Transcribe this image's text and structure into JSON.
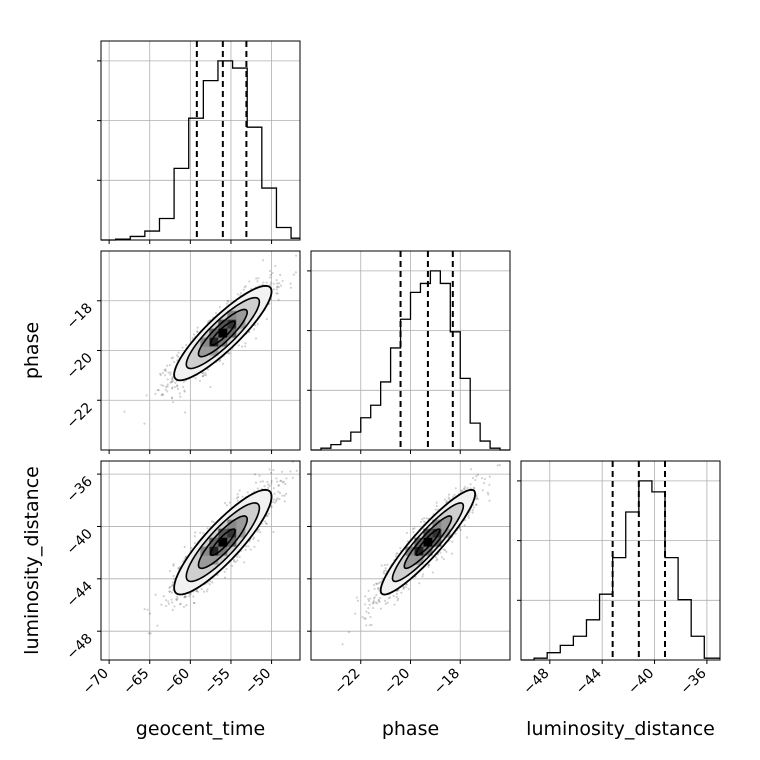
{
  "chart_data": {
    "type": "corner",
    "parameters": [
      "geocent_time",
      "phase",
      "luminosity_distance"
    ],
    "axis_labels": {
      "x": [
        "geocent_time",
        "phase",
        "luminosity_distance"
      ],
      "y": [
        "",
        "phase",
        "luminosity_distance"
      ]
    },
    "ranges": {
      "geocent_time": [
        -71,
        -46.5
      ],
      "phase": [
        -24.0,
        -16.0
      ],
      "luminosity_distance": [
        -50.2,
        -35.0
      ]
    },
    "ticks": {
      "geocent_time": [
        -70,
        -65,
        -60,
        -55,
        -50
      ],
      "phase": [
        -22,
        -20,
        -18
      ],
      "luminosity_distance": [
        -48,
        -44,
        -40,
        -36
      ]
    },
    "tick_labels": {
      "geocent_time": [
        "−70",
        "−65",
        "−60",
        "−55",
        "−50"
      ],
      "phase": [
        "−22",
        "−20",
        "−18"
      ],
      "luminosity_distance": [
        "−48",
        "−44",
        "−40",
        "−36"
      ]
    },
    "quantiles": {
      "geocent_time": [
        -59.2,
        -56.0,
        -53.1
      ],
      "phase": [
        -20.4,
        -19.3,
        -18.3
      ],
      "luminosity_distance": [
        -43.2,
        -41.2,
        -39.2
      ]
    },
    "histograms": {
      "geocent_time": {
        "edges": [
          -71,
          -69.2,
          -67.4,
          -65.6,
          -63.8,
          -62.0,
          -60.2,
          -58.4,
          -56.6,
          -54.8,
          -53.0,
          -51.2,
          -49.4,
          -47.6,
          -46.5
        ],
        "counts": [
          0.0,
          0.005,
          0.02,
          0.05,
          0.12,
          0.4,
          0.68,
          0.89,
          1.0,
          0.96,
          0.63,
          0.29,
          0.07,
          0.01
        ]
      },
      "phase": {
        "edges": [
          -24.0,
          -23.6,
          -23.2,
          -22.8,
          -22.4,
          -22.0,
          -21.6,
          -21.2,
          -20.8,
          -20.4,
          -20.0,
          -19.6,
          -19.2,
          -18.8,
          -18.4,
          -18.0,
          -17.6,
          -17.2,
          -16.8,
          -16.4,
          -16.0
        ],
        "counts": [
          0.0,
          0.01,
          0.03,
          0.05,
          0.1,
          0.18,
          0.25,
          0.38,
          0.57,
          0.73,
          0.88,
          0.93,
          1.0,
          0.93,
          0.66,
          0.4,
          0.15,
          0.05,
          0.01,
          0.0
        ]
      },
      "luminosity_distance": {
        "edges": [
          -50.2,
          -49.2,
          -48.2,
          -47.2,
          -46.2,
          -45.2,
          -44.2,
          -43.2,
          -42.2,
          -41.2,
          -40.2,
          -39.2,
          -38.2,
          -37.2,
          -36.2,
          -35.0
        ],
        "counts": [
          0.0,
          0.01,
          0.04,
          0.08,
          0.13,
          0.22,
          0.36,
          0.56,
          0.81,
          0.98,
          0.92,
          0.56,
          0.33,
          0.13,
          0.01
        ]
      }
    },
    "joint": [
      {
        "x": "geocent_time",
        "y": "phase",
        "mean": [
          -56.0,
          -19.3
        ],
        "sd": [
          3.0,
          0.95
        ],
        "rho": 0.88
      },
      {
        "x": "geocent_time",
        "y": "luminosity_distance",
        "mean": [
          -56.0,
          -41.2
        ],
        "sd": [
          3.0,
          2.0
        ],
        "rho": 0.87
      },
      {
        "x": "phase",
        "y": "luminosity_distance",
        "mean": [
          -19.3,
          -41.2
        ],
        "sd": [
          0.95,
          2.0
        ],
        "rho": 0.92
      }
    ],
    "contour_levels_sigma": [
      0.5,
      1.0,
      1.5,
      2.0
    ],
    "grid": true
  },
  "colors": {
    "line": "#000000",
    "grid": "#b0b0b0",
    "scatter": "#000000",
    "contour_fill_light": "#f2f2f2"
  }
}
